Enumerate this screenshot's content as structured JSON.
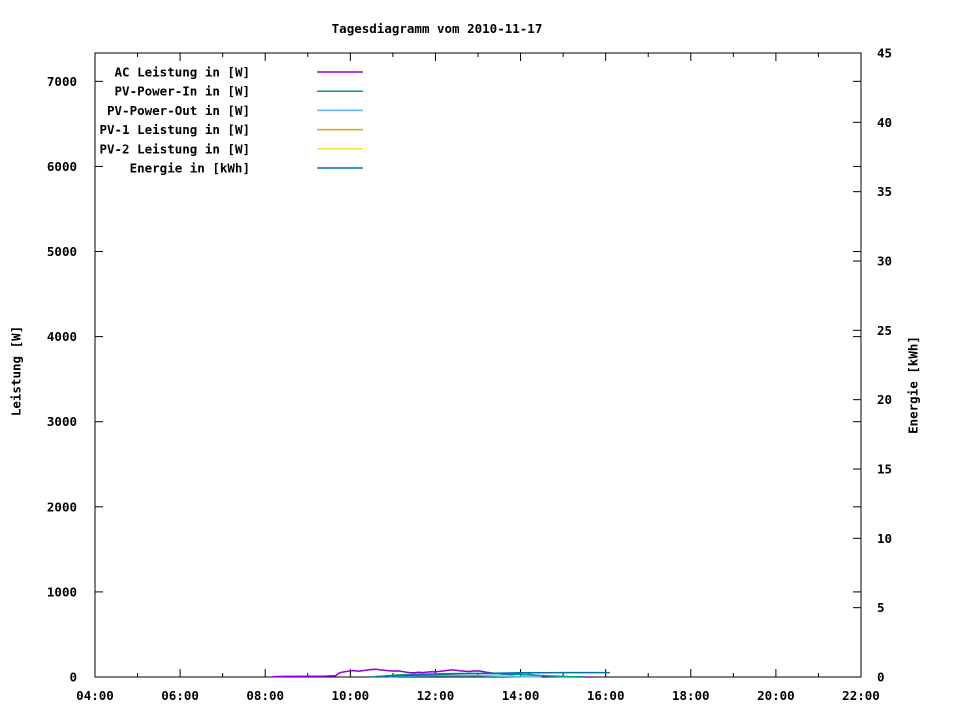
{
  "title": "Tagesdiagramm vom 2010-11-17",
  "chart_data": {
    "type": "line",
    "title": "Tagesdiagramm vom 2010-11-17",
    "grid": false,
    "legend_position": "top-left-inside",
    "background": "#ffffff",
    "x_axis": {
      "range_hours": [
        4,
        22
      ],
      "major_tick_labels": [
        "04:00",
        "06:00",
        "08:00",
        "10:00",
        "12:00",
        "14:00",
        "16:00",
        "18:00",
        "20:00",
        "22:00"
      ],
      "major_tick_hours": [
        4,
        6,
        8,
        10,
        12,
        14,
        16,
        18,
        20,
        22
      ],
      "minor_tick_every_hours": 1
    },
    "y1_axis": {
      "label": "Leistung [W]",
      "range": [
        0,
        7333
      ],
      "tick_values": [
        0,
        1000,
        2000,
        3000,
        4000,
        5000,
        6000,
        7000
      ]
    },
    "y2_axis": {
      "label": "Energie [kWh]",
      "range": [
        0,
        45
      ],
      "tick_values": [
        0,
        5,
        10,
        15,
        20,
        25,
        30,
        35,
        40,
        45
      ]
    },
    "series": [
      {
        "name": "AC Leistung in [W]",
        "color": "#9400d3",
        "axis": "y1",
        "points": [
          [
            8.17,
            5
          ],
          [
            8.5,
            7
          ],
          [
            9.0,
            8
          ],
          [
            9.4,
            10
          ],
          [
            9.65,
            15
          ],
          [
            9.75,
            50
          ],
          [
            9.9,
            65
          ],
          [
            10.0,
            72
          ],
          [
            10.1,
            75
          ],
          [
            10.2,
            68
          ],
          [
            10.3,
            75
          ],
          [
            10.4,
            82
          ],
          [
            10.5,
            88
          ],
          [
            10.6,
            90
          ],
          [
            10.7,
            84
          ],
          [
            10.8,
            80
          ],
          [
            10.9,
            74
          ],
          [
            11.0,
            70
          ],
          [
            11.1,
            72
          ],
          [
            11.2,
            66
          ],
          [
            11.3,
            58
          ],
          [
            11.4,
            52
          ],
          [
            11.5,
            50
          ],
          [
            11.6,
            55
          ],
          [
            11.7,
            52
          ],
          [
            11.8,
            58
          ],
          [
            11.9,
            62
          ],
          [
            12.0,
            60
          ],
          [
            12.1,
            66
          ],
          [
            12.2,
            72
          ],
          [
            12.3,
            80
          ],
          [
            12.4,
            84
          ],
          [
            12.5,
            78
          ],
          [
            12.6,
            72
          ],
          [
            12.7,
            68
          ],
          [
            12.8,
            65
          ],
          [
            12.9,
            70
          ],
          [
            13.0,
            72
          ],
          [
            13.1,
            66
          ],
          [
            13.2,
            55
          ],
          [
            13.3,
            48
          ],
          [
            13.4,
            42
          ],
          [
            13.5,
            38
          ],
          [
            13.6,
            32
          ],
          [
            13.7,
            30
          ],
          [
            13.8,
            28
          ],
          [
            13.9,
            30
          ],
          [
            14.0,
            32
          ],
          [
            14.1,
            26
          ],
          [
            14.2,
            30
          ],
          [
            14.3,
            24
          ],
          [
            14.4,
            18
          ],
          [
            14.5,
            12
          ],
          [
            14.6,
            10
          ],
          [
            14.7,
            8
          ],
          [
            14.8,
            6
          ],
          [
            14.9,
            4
          ],
          [
            15.0,
            2
          ],
          [
            15.2,
            1
          ],
          [
            15.45,
            0
          ],
          [
            15.72,
            0
          ]
        ]
      },
      {
        "name": "PV-Power-In in [W]",
        "color": "#009e73",
        "axis": "y1",
        "points": [
          [
            10.5,
            4
          ],
          [
            10.8,
            12
          ],
          [
            11.0,
            20
          ],
          [
            11.3,
            28
          ],
          [
            11.6,
            33
          ],
          [
            12.0,
            36
          ],
          [
            12.4,
            40
          ],
          [
            12.8,
            42
          ],
          [
            13.2,
            40
          ],
          [
            13.6,
            36
          ],
          [
            14.0,
            30
          ],
          [
            14.3,
            22
          ],
          [
            14.6,
            14
          ],
          [
            14.9,
            8
          ],
          [
            15.2,
            4
          ],
          [
            15.5,
            2
          ]
        ]
      },
      {
        "name": "PV-Power-Out in [W]",
        "color": "#56b4e9",
        "axis": "y1",
        "points": [
          [
            10.9,
            3
          ],
          [
            11.2,
            8
          ],
          [
            11.5,
            12
          ],
          [
            12.0,
            15
          ],
          [
            12.5,
            16
          ],
          [
            13.0,
            14
          ],
          [
            13.4,
            10
          ],
          [
            13.8,
            6
          ],
          [
            14.2,
            3
          ],
          [
            14.5,
            1
          ]
        ]
      },
      {
        "name": "PV-1 Leistung in [W]",
        "color": "#e69f00",
        "axis": "y1",
        "points": []
      },
      {
        "name": "PV-2 Leistung in [W]",
        "color": "#f0e442",
        "axis": "y1",
        "points": []
      },
      {
        "name": "Energie in [kWh]",
        "color": "#0072b2",
        "axis": "y2",
        "points": [
          [
            10.6,
            0.0
          ],
          [
            11.0,
            0.05
          ],
          [
            11.5,
            0.12
          ],
          [
            12.0,
            0.17
          ],
          [
            12.5,
            0.22
          ],
          [
            13.0,
            0.25
          ],
          [
            13.5,
            0.28
          ],
          [
            14.0,
            0.3
          ],
          [
            14.5,
            0.31
          ],
          [
            15.0,
            0.315
          ],
          [
            15.5,
            0.32
          ],
          [
            16.1,
            0.32
          ]
        ]
      }
    ]
  }
}
